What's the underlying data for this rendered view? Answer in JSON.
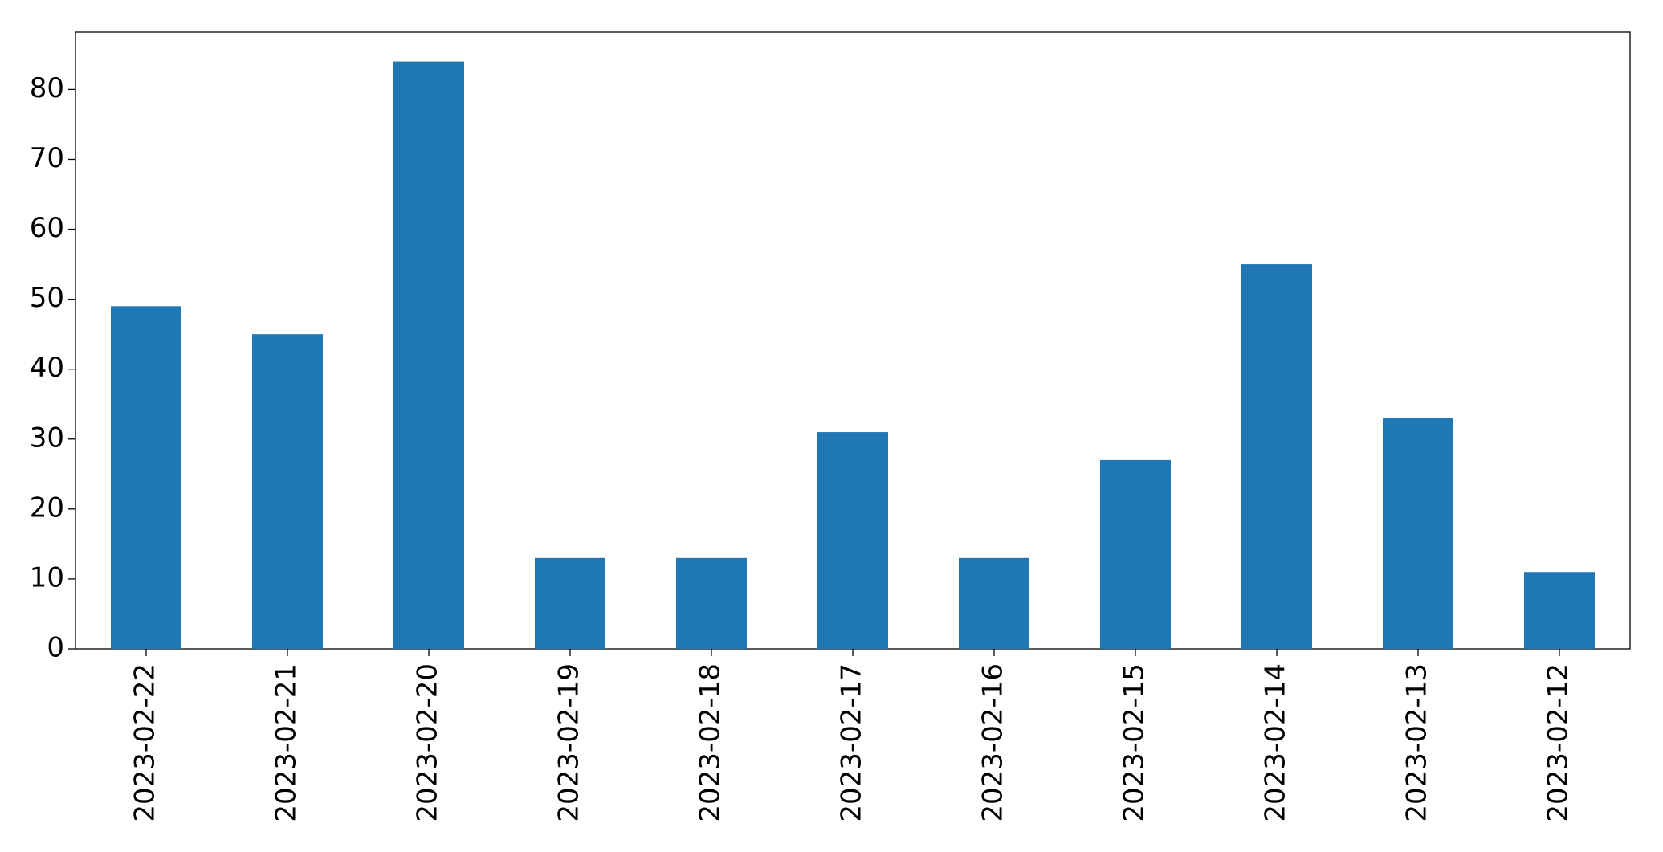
{
  "chart_data": {
    "type": "bar",
    "categories": [
      "2023-02-22",
      "2023-02-21",
      "2023-02-20",
      "2023-02-19",
      "2023-02-18",
      "2023-02-17",
      "2023-02-16",
      "2023-02-15",
      "2023-02-14",
      "2023-02-13",
      "2023-02-12"
    ],
    "values": [
      49,
      45,
      84,
      13,
      13,
      31,
      13,
      27,
      55,
      33,
      11
    ],
    "color": "#1f77b4",
    "ylim": [
      0,
      88.2
    ],
    "yticks": [
      0,
      10,
      20,
      30,
      40,
      50,
      60,
      70,
      80
    ],
    "grid": false
  }
}
